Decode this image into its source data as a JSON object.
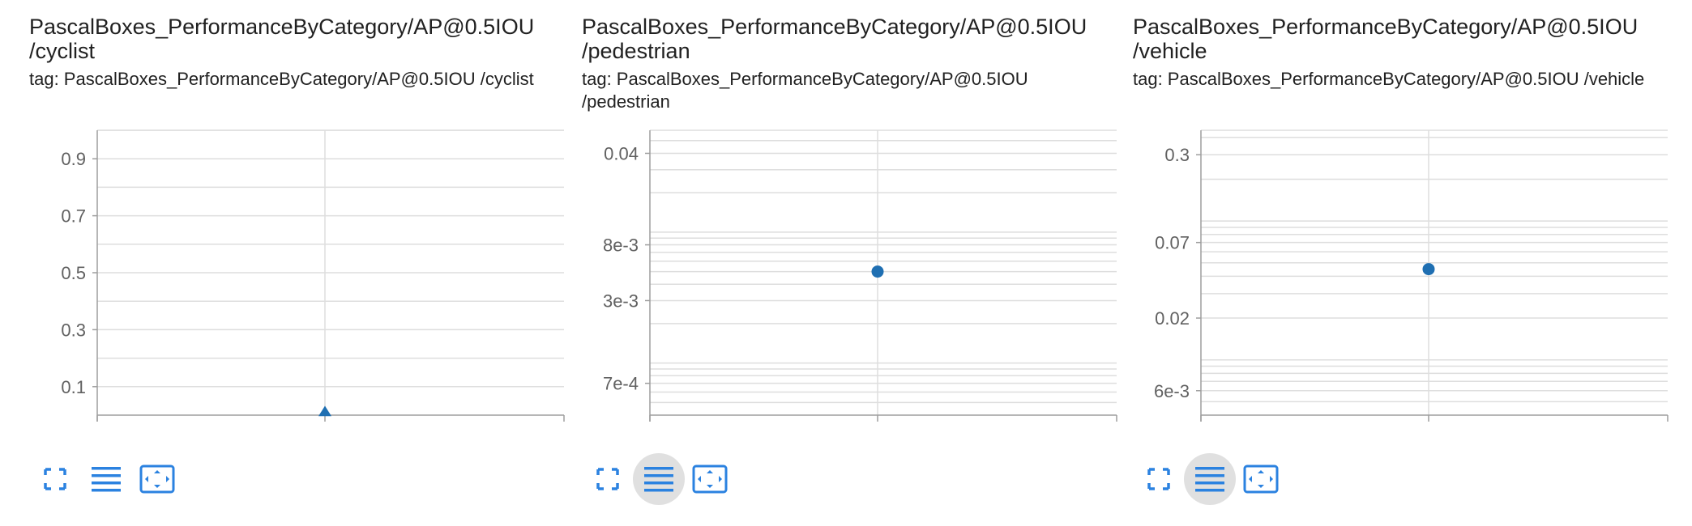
{
  "colors": {
    "series": "#1f6fb2",
    "grid": "#dedede",
    "axis": "#9e9e9e",
    "icon": "#2b82e0"
  },
  "icons": [
    "fullscreen-icon",
    "toggle-log-scale-icon",
    "fit-domain-icon"
  ],
  "cards": [
    {
      "title": "PascalBoxes_PerformanceByCategory/AP@0.5IOU /cyclist",
      "tag": "tag: PascalBoxes_PerformanceByCategory/AP@0.5IOU /cyclist",
      "log_toggle_active": false,
      "chart_data": {
        "type": "scatter",
        "yscale": "linear",
        "ylim": [
          0,
          1
        ],
        "yticks": [
          0.9,
          0.7,
          0.5,
          0.3,
          0.1
        ],
        "ytick_labels": [
          "0.9",
          "0.7",
          "0.5",
          "0.3",
          "0.1"
        ],
        "grid": true,
        "marker": "triangle",
        "series": [
          {
            "x": [
              0
            ],
            "y": [
              0.01
            ]
          }
        ]
      }
    },
    {
      "title": "PascalBoxes_PerformanceByCategory/AP@0.5IOU /pedestrian",
      "tag": "tag: PascalBoxes_PerformanceByCategory/AP@0.5IOU /pedestrian",
      "log_toggle_active": true,
      "chart_data": {
        "type": "scatter",
        "yscale": "log",
        "ylim": [
          0.0004,
          0.06
        ],
        "yticks": [
          0.04,
          0.008,
          0.003,
          0.0007
        ],
        "ytick_labels": [
          "0.04",
          "8e-3",
          "3e-3",
          "7e-4"
        ],
        "grid": true,
        "marker": "circle",
        "series": [
          {
            "x": [
              0
            ],
            "y": [
              0.005
            ]
          }
        ]
      }
    },
    {
      "title": "PascalBoxes_PerformanceByCategory/AP@0.5IOU /vehicle",
      "tag": "tag: PascalBoxes_PerformanceByCategory/AP@0.5IOU /vehicle",
      "log_toggle_active": true,
      "chart_data": {
        "type": "scatter",
        "yscale": "log",
        "ylim": [
          0.004,
          0.45
        ],
        "yticks": [
          0.3,
          0.07,
          0.02,
          0.006
        ],
        "ytick_labels": [
          "0.3",
          "0.07",
          "0.02",
          "6e-3"
        ],
        "grid": true,
        "marker": "circle",
        "series": [
          {
            "x": [
              0
            ],
            "y": [
              0.045
            ]
          }
        ]
      }
    }
  ]
}
